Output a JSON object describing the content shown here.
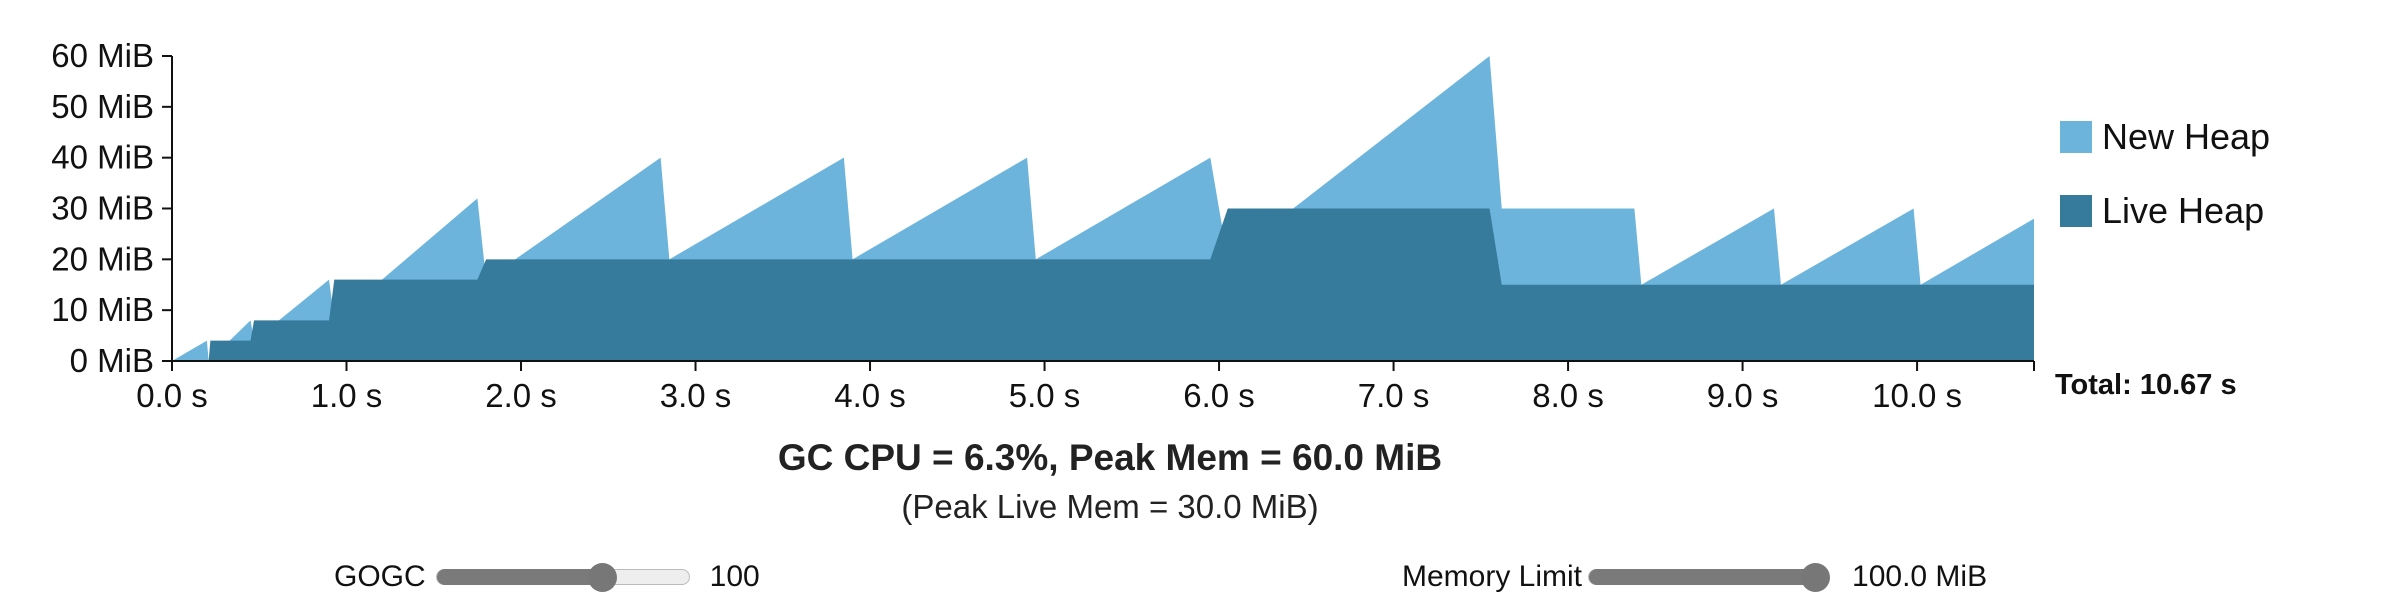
{
  "chart_data": {
    "type": "area",
    "title": "",
    "xlabel": "",
    "ylabel": "",
    "xlim": [
      0,
      10.67
    ],
    "ylim": [
      0,
      60
    ],
    "x_unit_suffix": " s",
    "y_unit_suffix": " MiB",
    "x_ticks": [
      {
        "value": 0,
        "label": "0.0 s"
      },
      {
        "value": 1,
        "label": "1.0 s"
      },
      {
        "value": 2,
        "label": "2.0 s"
      },
      {
        "value": 3,
        "label": "3.0 s"
      },
      {
        "value": 4,
        "label": "4.0 s"
      },
      {
        "value": 5,
        "label": "5.0 s"
      },
      {
        "value": 6,
        "label": "6.0 s"
      },
      {
        "value": 7,
        "label": "7.0 s"
      },
      {
        "value": 8,
        "label": "8.0 s"
      },
      {
        "value": 9,
        "label": "9.0 s"
      },
      {
        "value": 10,
        "label": "10.0 s"
      }
    ],
    "y_ticks": [
      {
        "value": 0,
        "label": "0 MiB"
      },
      {
        "value": 10,
        "label": "10 MiB"
      },
      {
        "value": 20,
        "label": "20 MiB"
      },
      {
        "value": 30,
        "label": "30 MiB"
      },
      {
        "value": 40,
        "label": "40 MiB"
      },
      {
        "value": 50,
        "label": "50 MiB"
      },
      {
        "value": 60,
        "label": "60 MiB"
      }
    ],
    "grid": false,
    "legend_position": "right",
    "series": [
      {
        "name": "New Heap",
        "color": "#6cb4dc",
        "points": [
          [
            0,
            0
          ],
          [
            0.2,
            4
          ],
          [
            0.21,
            0
          ],
          [
            0.45,
            8
          ],
          [
            0.47,
            4
          ],
          [
            0.9,
            16
          ],
          [
            0.93,
            8
          ],
          [
            1.75,
            32
          ],
          [
            1.8,
            16
          ],
          [
            2.8,
            40
          ],
          [
            2.85,
            20
          ],
          [
            3.85,
            40
          ],
          [
            3.9,
            20
          ],
          [
            4.9,
            40
          ],
          [
            4.95,
            20
          ],
          [
            5.95,
            40
          ],
          [
            6.05,
            20
          ],
          [
            7.55,
            60
          ],
          [
            7.62,
            30
          ],
          [
            8.38,
            30
          ],
          [
            8.42,
            15
          ],
          [
            9.18,
            30
          ],
          [
            9.22,
            15
          ],
          [
            9.98,
            30
          ],
          [
            10.02,
            15
          ],
          [
            10.67,
            28
          ]
        ]
      },
      {
        "name": "Live Heap",
        "color": "#367a9c",
        "points": [
          [
            0.21,
            0
          ],
          [
            0.22,
            4
          ],
          [
            0.45,
            4
          ],
          [
            0.47,
            8
          ],
          [
            0.9,
            8
          ],
          [
            0.93,
            16
          ],
          [
            1.75,
            16
          ],
          [
            1.8,
            20
          ],
          [
            5.95,
            20
          ],
          [
            6.05,
            30
          ],
          [
            7.55,
            30
          ],
          [
            7.62,
            15
          ],
          [
            10.67,
            15
          ]
        ]
      }
    ],
    "annotations": {
      "total": "Total: 10.67 s"
    }
  },
  "summary": {
    "headline": "GC CPU = 6.3%, Peak Mem = 60.0 MiB",
    "sub": "(Peak Live Mem = 30.0 MiB)"
  },
  "controls": {
    "gogc": {
      "label": "GOGC",
      "value_text": "100",
      "fraction": 0.65
    },
    "memory_limit": {
      "label": "Memory Limit",
      "value_text": "100.0 MiB",
      "fraction": 1.0
    }
  }
}
